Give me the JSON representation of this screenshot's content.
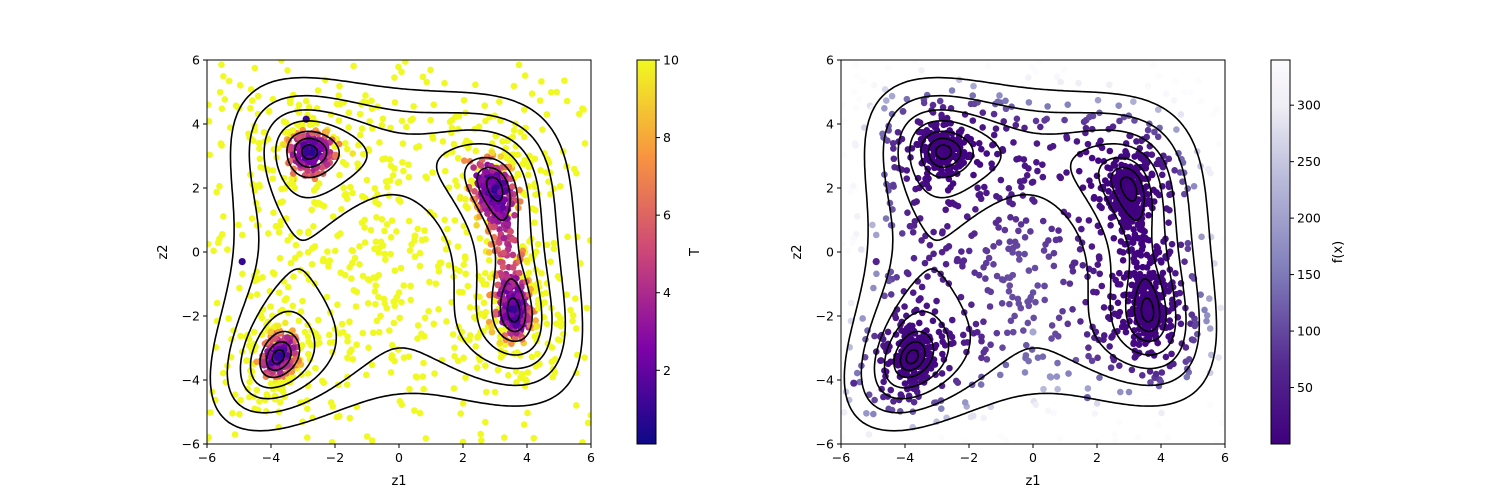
{
  "chart_data": [
    {
      "type": "scatter",
      "title": "",
      "xlabel": "z1",
      "ylabel": "z2",
      "xlim": [
        -6,
        6
      ],
      "ylim": [
        -6,
        6
      ],
      "xticks": [
        -6,
        -4,
        -2,
        0,
        2,
        4,
        6
      ],
      "yticks": [
        -6,
        -4,
        -2,
        0,
        2,
        4,
        6
      ],
      "grid": false,
      "overlay": "contour lines of f(x) (Himmelblau-style surface) with four minima near (3, 2), (-2.8, 3.1), (-3.8, -3.3), (3.6, -1.8)",
      "colorbar": {
        "label": "T",
        "range": [
          0.1,
          10
        ],
        "ticks": [
          2,
          4,
          6,
          8,
          10
        ],
        "colormap": "plasma",
        "colors": [
          "#0d0887",
          "#7e03a8",
          "#cc4778",
          "#f89540",
          "#f0f921"
        ]
      },
      "points_sample": [
        {
          "x": -2.9,
          "y": 3.1,
          "c": 1
        },
        {
          "x": 3.0,
          "y": 2.0,
          "c": 1
        },
        {
          "x": -3.8,
          "y": -3.3,
          "c": 1
        },
        {
          "x": 3.6,
          "y": -1.8,
          "c": 1
        },
        {
          "x": -2.0,
          "y": 3.3,
          "c": 10
        },
        {
          "x": 0.5,
          "y": 0.5,
          "c": 10
        },
        {
          "x": -5.0,
          "y": 4.5,
          "c": 10
        },
        {
          "x": -4.9,
          "y": -0.3,
          "c": 1
        },
        {
          "x": -2.9,
          "y": 4.15,
          "c": 1
        },
        {
          "x": 2.2,
          "y": 3.4,
          "c": 10
        }
      ]
    },
    {
      "type": "scatter",
      "title": "",
      "xlabel": "z1",
      "ylabel": "z2",
      "xlim": [
        -6,
        6
      ],
      "ylim": [
        -6,
        6
      ],
      "xticks": [
        -6,
        -4,
        -2,
        0,
        2,
        4,
        6
      ],
      "yticks": [
        -6,
        -4,
        -2,
        0,
        2,
        4,
        6
      ],
      "grid": false,
      "overlay": "contour lines of f(x)",
      "colorbar": {
        "label": "f(x)",
        "range": [
          0,
          340
        ],
        "ticks": [
          50,
          100,
          150,
          200,
          250,
          300
        ],
        "colormap": "Purples_r",
        "colors": [
          "#3f007d",
          "#54278f",
          "#807dba",
          "#bcbddc",
          "#efedf5",
          "#fcfbfd"
        ]
      },
      "points_sample": [
        {
          "x": -2.9,
          "y": 3.1,
          "c": 5
        },
        {
          "x": 3.0,
          "y": 2.0,
          "c": 5
        },
        {
          "x": -3.8,
          "y": -3.3,
          "c": 5
        },
        {
          "x": 3.6,
          "y": -1.8,
          "c": 5
        },
        {
          "x": 0.0,
          "y": -2.5,
          "c": 180
        },
        {
          "x": -4.9,
          "y": -0.3,
          "c": 60
        },
        {
          "x": 1.7,
          "y": -4.55,
          "c": 110
        },
        {
          "x": -5.6,
          "y": -4.1,
          "c": 70
        },
        {
          "x": -5.0,
          "y": 4.5,
          "c": 300
        }
      ]
    }
  ]
}
